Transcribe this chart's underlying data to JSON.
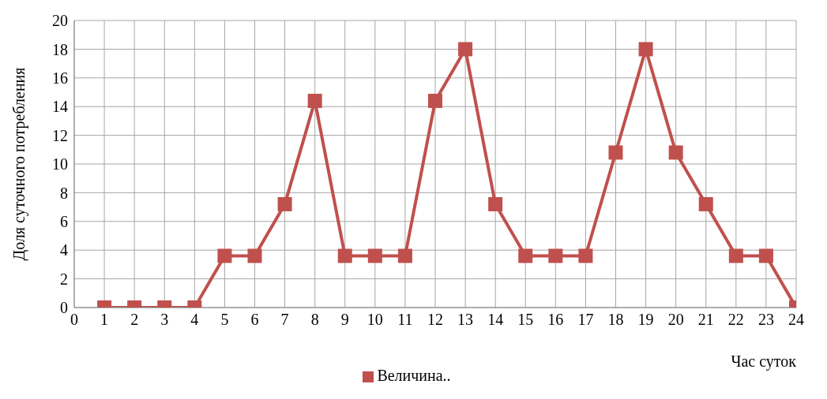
{
  "chart_data": {
    "type": "line",
    "xlabel": "Час суток",
    "ylabel": "Доля суточного потребления",
    "x": [
      1,
      2,
      3,
      4,
      5,
      6,
      7,
      8,
      9,
      10,
      11,
      12,
      13,
      14,
      15,
      16,
      17,
      18,
      19,
      20,
      21,
      22,
      23,
      24
    ],
    "series": [
      {
        "name": "Величина..",
        "color": "#c0504d",
        "values": [
          0,
          0,
          0,
          0,
          3.6,
          3.6,
          7.2,
          14.4,
          3.6,
          3.6,
          3.6,
          14.4,
          18,
          7.2,
          3.6,
          3.6,
          3.6,
          10.8,
          18,
          10.8,
          7.2,
          3.6,
          3.6,
          0
        ]
      }
    ],
    "xlim": [
      0,
      24
    ],
    "xticks": [
      0,
      1,
      2,
      3,
      4,
      5,
      6,
      7,
      8,
      9,
      10,
      11,
      12,
      13,
      14,
      15,
      16,
      17,
      18,
      19,
      20,
      21,
      22,
      23,
      24
    ],
    "ylim": [
      0,
      20
    ],
    "yticks": [
      0,
      2,
      4,
      6,
      8,
      10,
      12,
      14,
      16,
      18,
      20
    ],
    "grid": true,
    "legend": "bottom",
    "marker": "square",
    "line_style": "solid"
  }
}
